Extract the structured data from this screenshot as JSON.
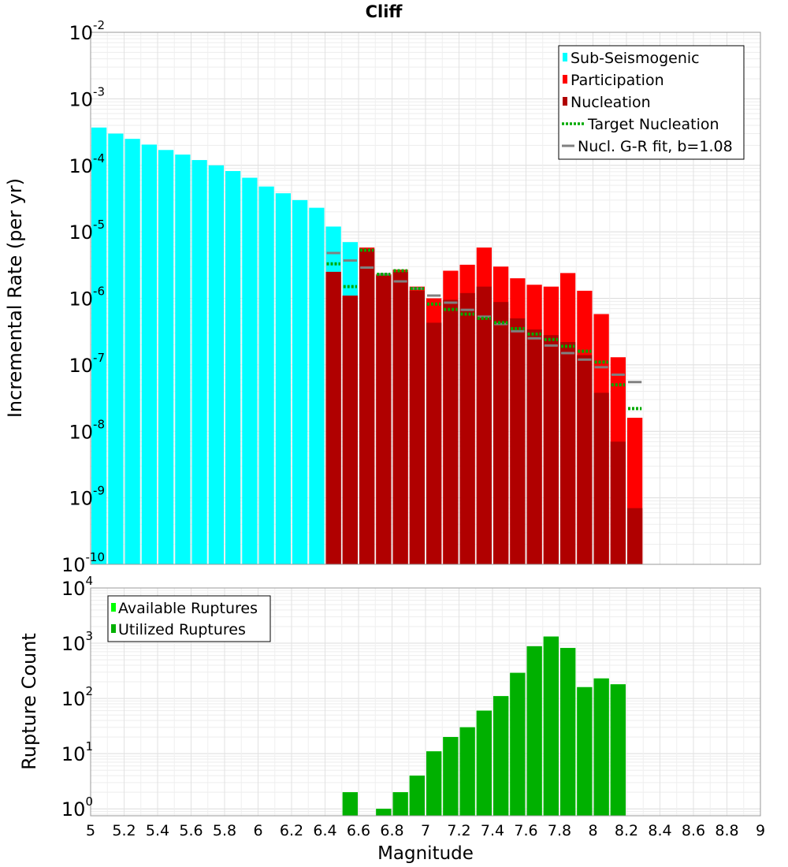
{
  "chart_data": [
    {
      "type": "bar",
      "title": "Cliff",
      "xlabel": "",
      "ylabel": "Incremental Rate (per yr)",
      "y_scale": "log",
      "ylim": [
        1e-10,
        0.01
      ],
      "xlim": [
        5,
        9
      ],
      "bin_width": 0.1,
      "y_ticks": [
        {
          "base": "10",
          "exp": "-10"
        },
        {
          "base": "10",
          "exp": "-9"
        },
        {
          "base": "10",
          "exp": "-8"
        },
        {
          "base": "10",
          "exp": "-7"
        },
        {
          "base": "10",
          "exp": "-6"
        },
        {
          "base": "10",
          "exp": "-5"
        },
        {
          "base": "10",
          "exp": "-4"
        },
        {
          "base": "10",
          "exp": "-3"
        },
        {
          "base": "10",
          "exp": "-2"
        }
      ],
      "legend": {
        "position": "top-right",
        "entries": [
          "Sub-Seismogenic",
          "Participation",
          "Nucleation",
          "Target Nucleation",
          "Nucl. G-R fit, b=1.08"
        ]
      },
      "grid": true,
      "series": [
        {
          "name": "Sub-Seismogenic",
          "color": "#00ffff",
          "x": [
            5.05,
            5.15,
            5.25,
            5.35,
            5.45,
            5.55,
            5.65,
            5.75,
            5.85,
            5.95,
            6.05,
            6.15,
            6.25,
            6.35,
            6.45,
            6.55
          ],
          "values": [
            0.00037,
            0.0003,
            0.00025,
            0.000205,
            0.00017,
            0.000145,
            0.00012,
            0.0001,
            8.2e-05,
            6.5e-05,
            4.8e-05,
            3.8e-05,
            3e-05,
            2.3e-05,
            1.2e-05,
            7e-06
          ]
        },
        {
          "name": "Participation",
          "color": "#ff0000",
          "x": [
            6.45,
            6.55,
            6.65,
            6.75,
            6.85,
            6.95,
            7.05,
            7.15,
            7.25,
            7.35,
            7.45,
            7.55,
            7.65,
            7.75,
            7.85,
            7.95,
            8.05,
            8.15,
            8.25
          ],
          "values": [
            2.5e-06,
            1.1e-06,
            5.8e-06,
            2.3e-06,
            2.7e-06,
            1.5e-06,
            1e-06,
            2.6e-06,
            3.2e-06,
            5.8e-06,
            3e-06,
            2e-06,
            1.6e-06,
            1.5e-06,
            2.4e-06,
            1.3e-06,
            5.8e-07,
            1.3e-07,
            1.6e-08
          ]
        },
        {
          "name": "Nucleation",
          "color": "#b00000",
          "x": [
            6.45,
            6.55,
            6.65,
            6.75,
            6.85,
            6.95,
            7.05,
            7.15,
            7.25,
            7.35,
            7.45,
            7.55,
            7.65,
            7.75,
            7.85,
            7.95,
            8.05,
            8.15,
            8.25
          ],
          "values": [
            2.5e-06,
            1.1e-06,
            5.5e-06,
            2.2e-06,
            2.5e-06,
            1.3e-06,
            4.3e-07,
            9.5e-07,
            1.2e-06,
            1.5e-06,
            8.8e-07,
            5e-07,
            3.4e-07,
            2.8e-07,
            2.2e-07,
            1.4e-07,
            3.8e-08,
            7e-09,
            7e-10
          ]
        },
        {
          "name": "Target Nucleation",
          "color": "#00aa00",
          "x": [
            6.45,
            6.55,
            6.65,
            6.75,
            6.85,
            6.95,
            7.05,
            7.15,
            7.25,
            7.35,
            7.45,
            7.55,
            7.65,
            7.75,
            7.85,
            7.95,
            8.05,
            8.15,
            8.25
          ],
          "values": [
            3.3e-06,
            1.5e-06,
            5.3e-06,
            2.3e-06,
            2.6e-06,
            1.4e-06,
            8.2e-07,
            6.8e-07,
            5.8e-07,
            5e-07,
            4.3e-07,
            3.5e-07,
            2.9e-07,
            2.4e-07,
            1.9e-07,
            1.6e-07,
            1.1e-07,
            5e-08,
            2.2e-08
          ]
        },
        {
          "name": "Nucl. G-R fit, b=1.08",
          "color": "#808080",
          "x": [
            6.45,
            6.55,
            6.65,
            6.75,
            6.85,
            6.95,
            7.05,
            7.15,
            7.25,
            7.35,
            7.45,
            7.55,
            7.65,
            7.75,
            7.85,
            7.95,
            8.05,
            8.15,
            8.25
          ],
          "values": [
            4.8e-06,
            3.7e-06,
            2.9e-06,
            2.3e-06,
            1.8e-06,
            1.4e-06,
            1.1e-06,
            8.6e-07,
            6.7e-07,
            5.3e-07,
            4.1e-07,
            3.2e-07,
            2.5e-07,
            1.95e-07,
            1.5e-07,
            1.2e-07,
            9.2e-08,
            7.1e-08,
            5.5e-08
          ]
        }
      ]
    },
    {
      "type": "bar",
      "title": "",
      "xlabel": "Magnitude",
      "ylabel": "Rupture Count",
      "y_scale": "log",
      "ylim": [
        0.75,
        10000
      ],
      "xlim": [
        5,
        9
      ],
      "bin_width": 0.1,
      "y_ticks": [
        {
          "base": "10",
          "exp": "0"
        },
        {
          "base": "10",
          "exp": "1"
        },
        {
          "base": "10",
          "exp": "2"
        },
        {
          "base": "10",
          "exp": "3"
        },
        {
          "base": "10",
          "exp": "4"
        }
      ],
      "x_ticks": [
        "5",
        "5.2",
        "5.4",
        "5.6",
        "5.8",
        "6",
        "6.2",
        "6.4",
        "6.6",
        "6.8",
        "7",
        "7.2",
        "7.4",
        "7.6",
        "7.8",
        "8",
        "8.2",
        "8.4",
        "8.6",
        "8.8",
        "9"
      ],
      "legend": {
        "position": "top-left",
        "entries": [
          "Available Ruptures",
          "Utilized Ruptures"
        ]
      },
      "grid": true,
      "series": [
        {
          "name": "Available Ruptures",
          "color": "#00ff00",
          "x": [
            6.55,
            6.75,
            6.85,
            6.95,
            7.05,
            7.15,
            7.25,
            7.35,
            7.45,
            7.55,
            7.65,
            7.75,
            7.85,
            7.95,
            8.05,
            8.15
          ],
          "values": [
            2,
            1,
            2,
            4,
            11,
            20,
            30,
            60,
            110,
            290,
            880,
            1320,
            820,
            160,
            230,
            180
          ]
        },
        {
          "name": "Utilized Ruptures",
          "color": "#00b000",
          "x": [
            6.55,
            6.75,
            6.85,
            6.95,
            7.05,
            7.15,
            7.25,
            7.35,
            7.45,
            7.55,
            7.65,
            7.75,
            7.85,
            7.95,
            8.05,
            8.15
          ],
          "values": [
            2,
            1,
            2,
            4,
            11,
            20,
            30,
            60,
            110,
            290,
            880,
            1320,
            820,
            160,
            230,
            180
          ]
        }
      ]
    }
  ]
}
